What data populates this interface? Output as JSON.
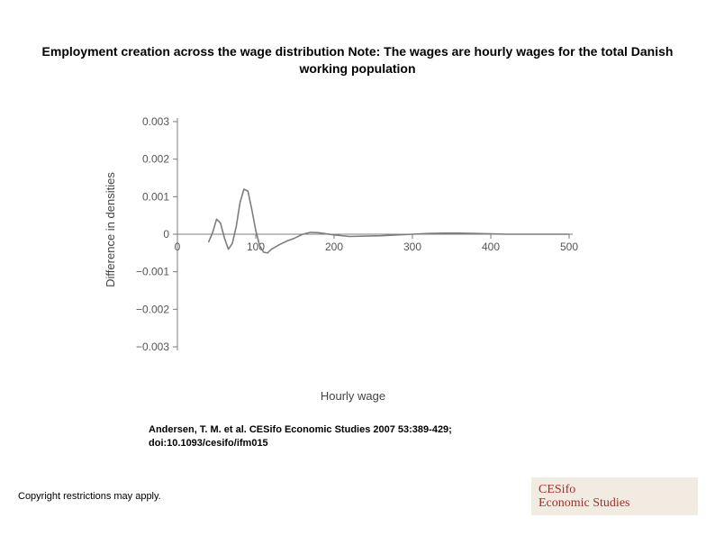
{
  "title": "Employment creation across the wage distribution Note: The wages are hourly wages for the total Danish working population",
  "citation_line1": "Andersen, T. M. et al. CESifo Economic Studies 2007 53:389-429;",
  "citation_line2": "doi:10.1093/cesifo/ifm015",
  "copyright": "Copyright restrictions may apply.",
  "logo": {
    "line1": "CESifo",
    "line2": "Economic Studies"
  },
  "chart": {
    "type": "line",
    "xlabel": "Hourly wage",
    "ylabel": "Difference in densities",
    "xlim": [
      0,
      500
    ],
    "ylim": [
      -0.003,
      0.003
    ],
    "xticks": [
      0,
      100,
      200,
      300,
      400,
      500
    ],
    "yticks": [
      -0.003,
      -0.002,
      -0.001,
      0,
      0.001,
      0.002,
      0.003
    ],
    "ytick_labels": [
      "−0.003",
      "−0.002",
      "−0.001",
      "0",
      "0.001",
      "0.002",
      "0.003"
    ],
    "line_color": "#7d7d7d",
    "line_width": 1.6,
    "axis_color": "#7d7d7d",
    "background_color": "#ffffff",
    "series": [
      {
        "x": 40,
        "y": -0.0002
      },
      {
        "x": 45,
        "y": 5e-05
      },
      {
        "x": 50,
        "y": 0.0004
      },
      {
        "x": 55,
        "y": 0.0003
      },
      {
        "x": 60,
        "y": -0.0001
      },
      {
        "x": 65,
        "y": -0.0004
      },
      {
        "x": 70,
        "y": -0.00025
      },
      {
        "x": 75,
        "y": 0.0002
      },
      {
        "x": 80,
        "y": 0.00085
      },
      {
        "x": 85,
        "y": 0.0012
      },
      {
        "x": 90,
        "y": 0.00115
      },
      {
        "x": 95,
        "y": 0.00065
      },
      {
        "x": 100,
        "y": 0.0001
      },
      {
        "x": 105,
        "y": -0.0003
      },
      {
        "x": 110,
        "y": -0.00048
      },
      {
        "x": 115,
        "y": -0.0005
      },
      {
        "x": 120,
        "y": -0.0004
      },
      {
        "x": 130,
        "y": -0.00028
      },
      {
        "x": 140,
        "y": -0.00018
      },
      {
        "x": 150,
        "y": -0.0001
      },
      {
        "x": 160,
        "y": 0.0
      },
      {
        "x": 170,
        "y": 5e-05
      },
      {
        "x": 180,
        "y": 4e-05
      },
      {
        "x": 200,
        "y": -2e-05
      },
      {
        "x": 220,
        "y": -6e-05
      },
      {
        "x": 240,
        "y": -5e-05
      },
      {
        "x": 260,
        "y": -4e-05
      },
      {
        "x": 280,
        "y": -2e-05
      },
      {
        "x": 300,
        "y": 0.0
      },
      {
        "x": 320,
        "y": 2e-05
      },
      {
        "x": 340,
        "y": 3e-05
      },
      {
        "x": 360,
        "y": 3e-05
      },
      {
        "x": 380,
        "y": 2e-05
      },
      {
        "x": 400,
        "y": 1e-05
      },
      {
        "x": 420,
        "y": 0.0
      },
      {
        "x": 450,
        "y": 0.0
      },
      {
        "x": 500,
        "y": 0.0
      }
    ]
  }
}
